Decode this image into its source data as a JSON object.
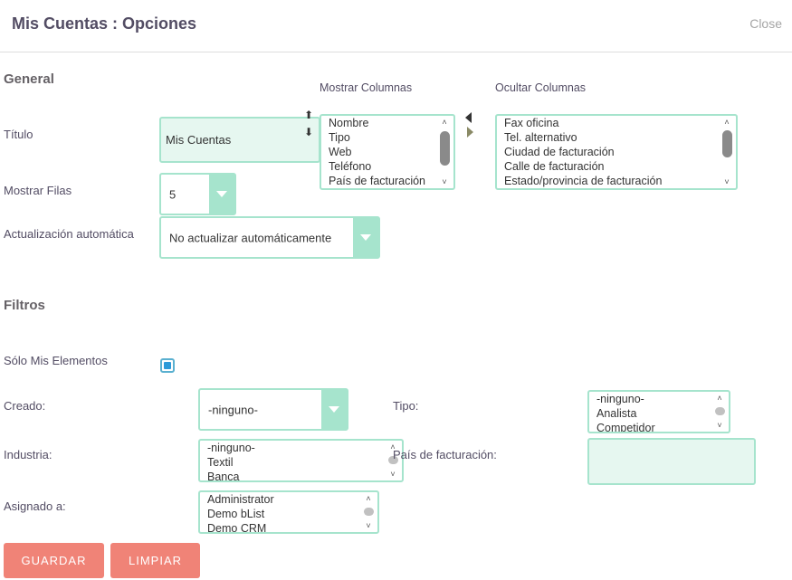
{
  "header": {
    "title": "Mis Cuentas : Opciones",
    "close": "Close"
  },
  "general": {
    "heading": "General",
    "titulo_label": "Título",
    "titulo_value": "Mis Cuentas",
    "filas_label": "Mostrar Filas",
    "filas_value": "5",
    "auto_label": "Actualización automática",
    "auto_value": "No actualizar automáticamente"
  },
  "columns": {
    "show_heading": "Mostrar Columnas",
    "hide_heading": "Ocultar Columnas",
    "show_items": [
      "Nombre",
      "Tipo",
      "Web",
      "Teléfono",
      "País de facturación"
    ],
    "hide_items": [
      "Fax oficina",
      "Tel. alternativo",
      "Ciudad de facturación",
      "Calle de facturación",
      "Estado/provincia de facturación"
    ]
  },
  "filters": {
    "heading": "Filtros",
    "mine_label": "Sólo Mis Elementos",
    "mine_checked": true,
    "creado_label": "Creado:",
    "creado_value": "-ninguno-",
    "tipo_label": "Tipo:",
    "tipo_items": [
      "-ninguno-",
      "Analista",
      "Competidor"
    ],
    "industria_label": "Industria:",
    "industria_items": [
      "-ninguno-",
      "Textil",
      "Banca"
    ],
    "pais_label": "País de facturación:",
    "pais_value": "",
    "asignado_label": "Asignado a:",
    "asignado_items": [
      "Administrator",
      "Demo bList",
      "Demo CRM"
    ]
  },
  "actions": {
    "save": "GUARDAR",
    "clear": "LIMPIAR"
  },
  "icons": {
    "scroll_up": "up-arrow-icon",
    "scroll_down": "down-arrow-icon",
    "move_up": "move-up-icon",
    "move_down": "move-down-icon",
    "move_left": "move-left-icon",
    "move_right": "move-right-icon",
    "dropdown": "chevron-down-icon"
  },
  "colors": {
    "accent": "#a6e4cd",
    "field_bg": "#e6f7f0",
    "button": "#f08377",
    "checkbox": "#2d9ad8"
  }
}
